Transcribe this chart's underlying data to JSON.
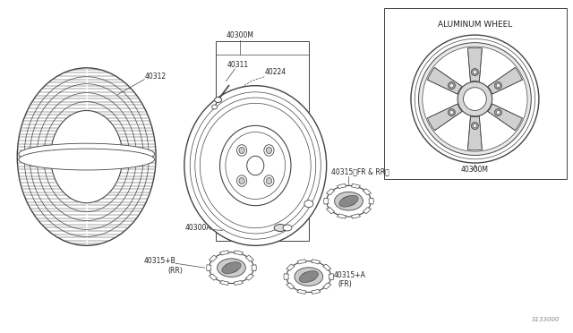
{
  "bg_color": "#ffffff",
  "line_color": "#444444",
  "dark_color": "#222222",
  "title": "ALUMINUM WHEEL",
  "part_number_main": "40300M",
  "footer_text": "S133000",
  "fs_label": 5.5,
  "fs_title": 6.5
}
